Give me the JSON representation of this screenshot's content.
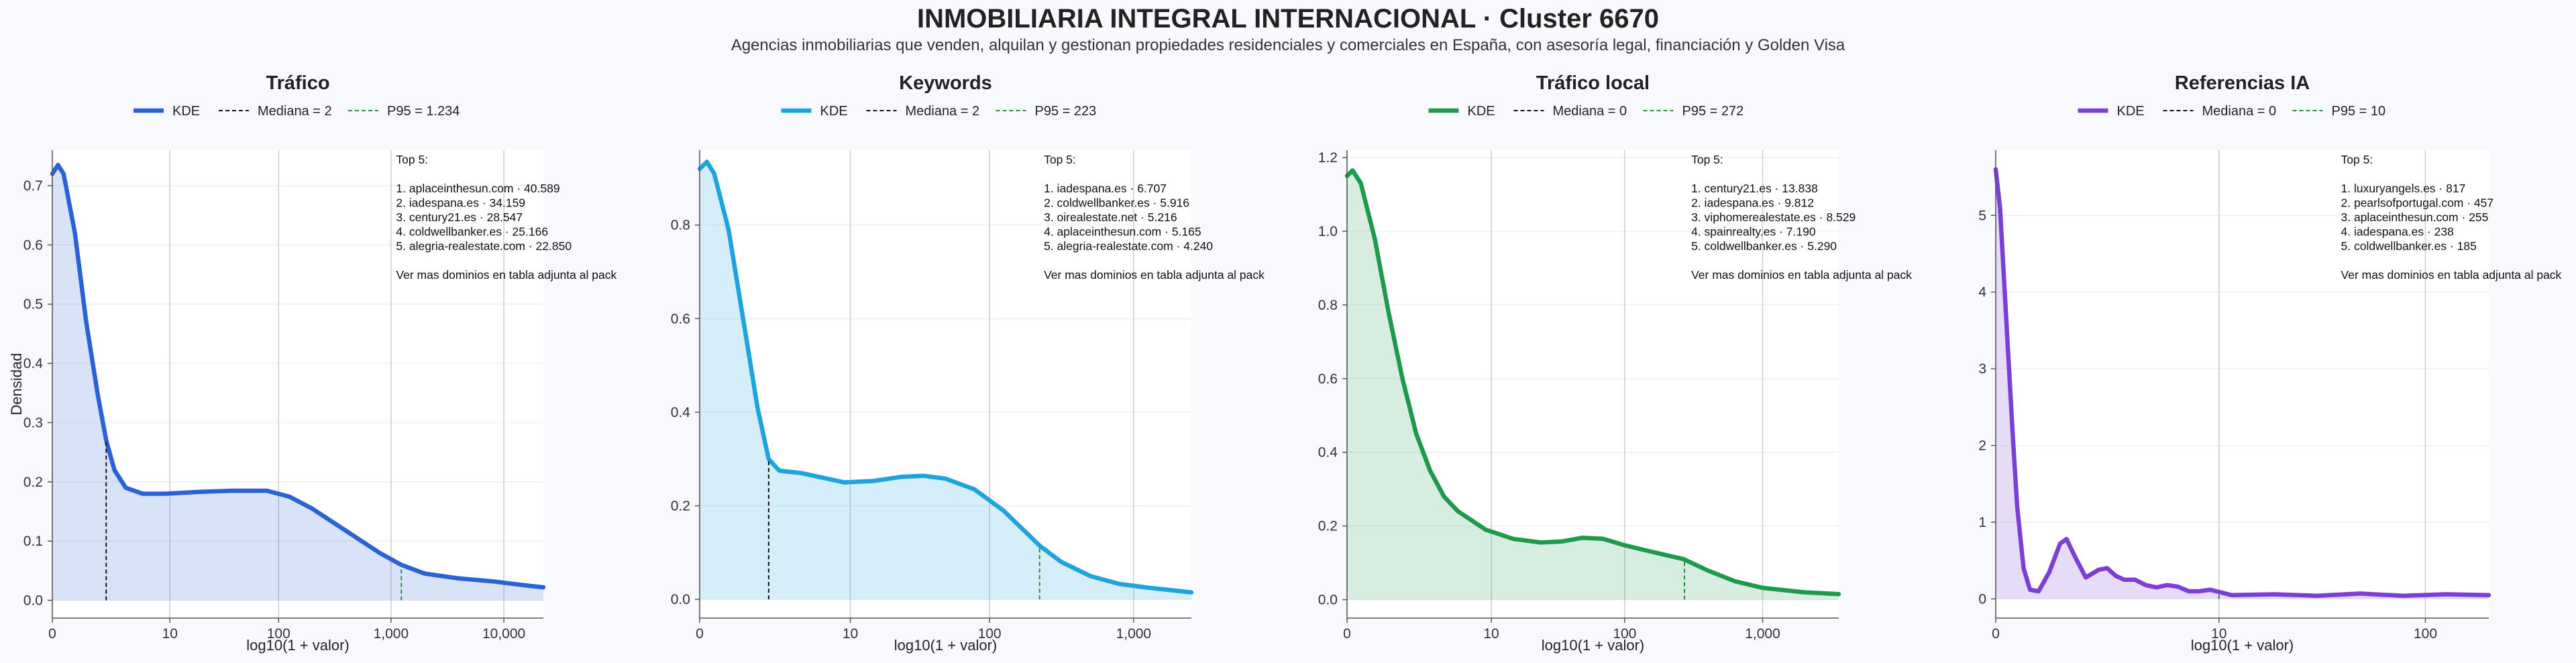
{
  "header": {
    "title": "INMOBILIARIA INTEGRAL INTERNACIONAL · Cluster 6670",
    "subtitle": "Agencias inmobiliarias que venden, alquilan y gestionan propiedades residenciales y comerciales en España, con asesoría legal, financiación y Golden Visa"
  },
  "colors": {
    "trafico": "#2a62d6",
    "keywords": "#1ea3dd",
    "trafico_local": "#1f9a4c",
    "referencias_ia": "#7b3fd6",
    "mediana": "#111111",
    "p95": "#2f8a3a"
  },
  "chart_data": [
    {
      "type": "area",
      "title": "Tráfico",
      "xlabel": "log10(1 + valor)",
      "ylabel": "Densidad",
      "x_scale": "log10(1+x)",
      "xlim": [
        0,
        4.35
      ],
      "ylim": [
        -0.03,
        0.76
      ],
      "xticks": [
        0,
        10,
        100,
        1000,
        10000
      ],
      "xtick_labels": [
        "0",
        "10",
        "100",
        "1,000",
        "10,000"
      ],
      "yticks": [
        0.0,
        0.1,
        0.2,
        0.3,
        0.4,
        0.5,
        0.6,
        0.7
      ],
      "ytick_labels": [
        "0.0",
        "0.1",
        "0.2",
        "0.3",
        "0.4",
        "0.5",
        "0.6",
        "0.7"
      ],
      "legend": [
        "KDE",
        "Mediana = 2",
        "P95 = 1.234"
      ],
      "median": 2,
      "p95": 1234,
      "series": [
        {
          "name": "KDE",
          "points": [
            [
              0,
              0.72
            ],
            [
              0.05,
              0.735
            ],
            [
              0.1,
              0.72
            ],
            [
              0.2,
              0.62
            ],
            [
              0.3,
              0.47
            ],
            [
              0.4,
              0.35
            ],
            [
              0.477,
              0.27
            ],
            [
              0.55,
              0.22
            ],
            [
              0.65,
              0.19
            ],
            [
              0.8,
              0.18
            ],
            [
              1.0,
              0.18
            ],
            [
              1.3,
              0.183
            ],
            [
              1.6,
              0.185
            ],
            [
              1.9,
              0.185
            ],
            [
              2.1,
              0.175
            ],
            [
              2.3,
              0.155
            ],
            [
              2.5,
              0.13
            ],
            [
              2.7,
              0.105
            ],
            [
              2.9,
              0.08
            ],
            [
              3.09,
              0.06
            ],
            [
              3.3,
              0.045
            ],
            [
              3.6,
              0.037
            ],
            [
              3.9,
              0.032
            ],
            [
              4.2,
              0.025
            ],
            [
              4.35,
              0.022
            ]
          ]
        }
      ],
      "annotation_lines": [
        "Top 5:",
        "",
        "1. aplaceinthesun.com · 40.589",
        "2. iadespana.es · 34.159",
        "3. century21.es · 28.547",
        "4. coldwellbanker.es · 25.166",
        "5. alegria-realestate.com · 22.850",
        "",
        "Ver mas dominios en tabla adjunta al pack"
      ]
    },
    {
      "type": "area",
      "title": "Keywords",
      "xlabel": "log10(1 + valor)",
      "ylabel": "",
      "x_scale": "log10(1+x)",
      "xlim": [
        0,
        3.4
      ],
      "ylim": [
        -0.04,
        0.96
      ],
      "xticks": [
        0,
        10,
        100,
        1000
      ],
      "xtick_labels": [
        "0",
        "10",
        "100",
        "1,000"
      ],
      "yticks": [
        0.0,
        0.2,
        0.4,
        0.6,
        0.8
      ],
      "ytick_labels": [
        "0.0",
        "0.2",
        "0.4",
        "0.6",
        "0.8"
      ],
      "legend": [
        "KDE",
        "Mediana = 2",
        "P95 = 223"
      ],
      "median": 2,
      "p95": 223,
      "series": [
        {
          "name": "KDE",
          "points": [
            [
              0,
              0.92
            ],
            [
              0.05,
              0.935
            ],
            [
              0.1,
              0.91
            ],
            [
              0.2,
              0.79
            ],
            [
              0.3,
              0.6
            ],
            [
              0.4,
              0.41
            ],
            [
              0.477,
              0.3
            ],
            [
              0.55,
              0.275
            ],
            [
              0.7,
              0.27
            ],
            [
              0.85,
              0.26
            ],
            [
              1.0,
              0.25
            ],
            [
              1.2,
              0.253
            ],
            [
              1.4,
              0.262
            ],
            [
              1.55,
              0.264
            ],
            [
              1.7,
              0.258
            ],
            [
              1.9,
              0.235
            ],
            [
              2.1,
              0.19
            ],
            [
              2.3,
              0.13
            ],
            [
              2.35,
              0.115
            ],
            [
              2.5,
              0.08
            ],
            [
              2.7,
              0.05
            ],
            [
              2.9,
              0.033
            ],
            [
              3.1,
              0.025
            ],
            [
              3.4,
              0.015
            ]
          ]
        }
      ],
      "annotation_lines": [
        "Top 5:",
        "",
        "1. iadespana.es · 6.707",
        "2. coldwellbanker.es · 5.916",
        "3. oirealestate.net · 5.216",
        "4. aplaceinthesun.com · 5.165",
        "5. alegria-realestate.com · 4.240",
        "",
        "Ver mas dominios en tabla adjunta al pack"
      ]
    },
    {
      "type": "area",
      "title": "Tráfico local",
      "xlabel": "log10(1 + valor)",
      "ylabel": "",
      "x_scale": "log10(1+x)",
      "xlim": [
        0,
        3.55
      ],
      "ylim": [
        -0.05,
        1.22
      ],
      "xticks": [
        0,
        10,
        100,
        1000
      ],
      "xtick_labels": [
        "0",
        "10",
        "100",
        "1,000"
      ],
      "yticks": [
        0.0,
        0.2,
        0.4,
        0.6,
        0.8,
        1.0,
        1.2
      ],
      "ytick_labels": [
        "0.0",
        "0.2",
        "0.4",
        "0.6",
        "0.8",
        "1.0",
        "1.2"
      ],
      "legend": [
        "KDE",
        "Mediana = 0",
        "P95 = 272"
      ],
      "median": 0,
      "p95": 272,
      "series": [
        {
          "name": "KDE",
          "points": [
            [
              0,
              1.15
            ],
            [
              0.04,
              1.165
            ],
            [
              0.1,
              1.13
            ],
            [
              0.2,
              0.98
            ],
            [
              0.3,
              0.78
            ],
            [
              0.4,
              0.6
            ],
            [
              0.5,
              0.45
            ],
            [
              0.6,
              0.35
            ],
            [
              0.7,
              0.28
            ],
            [
              0.8,
              0.24
            ],
            [
              1.0,
              0.19
            ],
            [
              1.2,
              0.165
            ],
            [
              1.4,
              0.155
            ],
            [
              1.55,
              0.158
            ],
            [
              1.7,
              0.168
            ],
            [
              1.85,
              0.165
            ],
            [
              2.0,
              0.148
            ],
            [
              2.2,
              0.13
            ],
            [
              2.43,
              0.11
            ],
            [
              2.6,
              0.08
            ],
            [
              2.8,
              0.05
            ],
            [
              3.0,
              0.032
            ],
            [
              3.3,
              0.02
            ],
            [
              3.55,
              0.015
            ]
          ]
        }
      ],
      "annotation_lines": [
        "Top 5:",
        "",
        "1. century21.es · 13.838",
        "2. iadespana.es · 9.812",
        "3. viphomerealestate.es · 8.529",
        "4. spainrealty.es · 7.190",
        "5. coldwellbanker.es · 5.290",
        "",
        "Ver mas dominios en tabla adjunta al pack"
      ]
    },
    {
      "type": "area",
      "title": "Referencias IA",
      "xlabel": "log10(1 + valor)",
      "ylabel": "",
      "x_scale": "log10(1+x)",
      "xlim": [
        0,
        2.3
      ],
      "ylim": [
        -0.25,
        5.85
      ],
      "xticks": [
        0,
        10,
        100
      ],
      "xtick_labels": [
        "0",
        "10",
        "100"
      ],
      "yticks": [
        0,
        1,
        2,
        3,
        4,
        5
      ],
      "ytick_labels": [
        "0",
        "1",
        "2",
        "3",
        "4",
        "5"
      ],
      "legend": [
        "KDE",
        "Mediana = 0",
        "P95 = 10"
      ],
      "median": 0,
      "p95": 10,
      "series": [
        {
          "name": "KDE",
          "points": [
            [
              0,
              5.6
            ],
            [
              0.02,
              5.1
            ],
            [
              0.05,
              3.6
            ],
            [
              0.08,
              2.1
            ],
            [
              0.1,
              1.2
            ],
            [
              0.13,
              0.4
            ],
            [
              0.16,
              0.12
            ],
            [
              0.2,
              0.1
            ],
            [
              0.25,
              0.35
            ],
            [
              0.3,
              0.72
            ],
            [
              0.33,
              0.78
            ],
            [
              0.37,
              0.55
            ],
            [
              0.42,
              0.28
            ],
            [
              0.48,
              0.38
            ],
            [
              0.52,
              0.4
            ],
            [
              0.56,
              0.3
            ],
            [
              0.6,
              0.25
            ],
            [
              0.65,
              0.25
            ],
            [
              0.7,
              0.18
            ],
            [
              0.75,
              0.15
            ],
            [
              0.8,
              0.18
            ],
            [
              0.85,
              0.16
            ],
            [
              0.9,
              0.1
            ],
            [
              0.95,
              0.1
            ],
            [
              1.0,
              0.12
            ],
            [
              1.1,
              0.05
            ],
            [
              1.3,
              0.06
            ],
            [
              1.5,
              0.04
            ],
            [
              1.7,
              0.07
            ],
            [
              1.9,
              0.04
            ],
            [
              2.1,
              0.06
            ],
            [
              2.3,
              0.05
            ]
          ]
        }
      ],
      "annotation_lines": [
        "Top 5:",
        "",
        "1. luxuryangels.es · 817",
        "2. pearlsofportugal.com · 457",
        "3. aplaceinthesun.com · 255",
        "4. iadespana.es · 238",
        "5. coldwellbanker.es · 185",
        "",
        "Ver mas dominios en tabla adjunta al pack"
      ]
    }
  ]
}
